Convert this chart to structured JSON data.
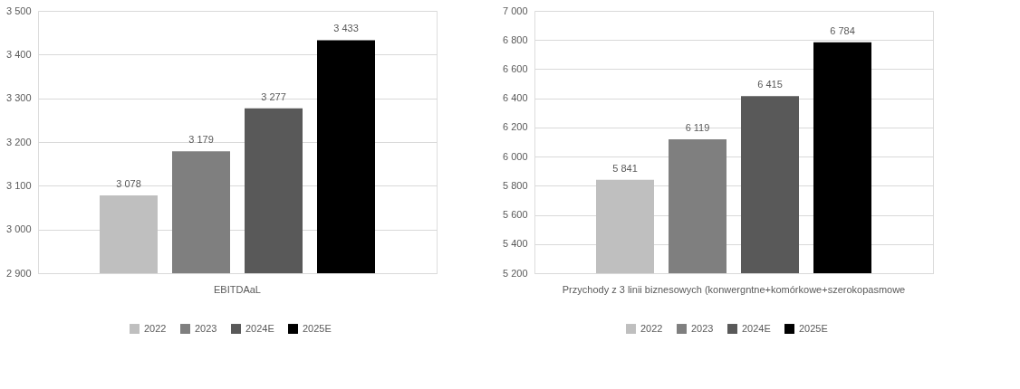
{
  "chart_data": [
    {
      "type": "bar",
      "categories": [
        "EBITDAaL"
      ],
      "series": [
        {
          "name": "2022",
          "color": "#bfbfbf",
          "values": [
            3078
          ],
          "value_labels": [
            "3 078"
          ]
        },
        {
          "name": "2023",
          "color": "#7f7f7f",
          "values": [
            3179
          ],
          "value_labels": [
            "3 179"
          ]
        },
        {
          "name": "2024E",
          "color": "#595959",
          "values": [
            3277
          ],
          "value_labels": [
            "3 277"
          ]
        },
        {
          "name": "2025E",
          "color": "#000000",
          "values": [
            3433
          ],
          "value_labels": [
            "3 433"
          ]
        }
      ],
      "ylim": [
        2900,
        3500
      ],
      "yticks": [
        {
          "value": 2900,
          "label": "2 900"
        },
        {
          "value": 3000,
          "label": "3 000"
        },
        {
          "value": 3100,
          "label": "3 100"
        },
        {
          "value": 3200,
          "label": "3 200"
        },
        {
          "value": 3300,
          "label": "3 300"
        },
        {
          "value": 3400,
          "label": "3 400"
        },
        {
          "value": 3500,
          "label": "3 500"
        }
      ],
      "grid": "y",
      "legend": "bottom"
    },
    {
      "type": "bar",
      "categories": [
        "Przychody z 3 linii biznesowych (konwergntne+komórkowe+szerokopasmowe"
      ],
      "series": [
        {
          "name": "2022",
          "color": "#bfbfbf",
          "values": [
            5841
          ],
          "value_labels": [
            "5 841"
          ]
        },
        {
          "name": "2023",
          "color": "#7f7f7f",
          "values": [
            6119
          ],
          "value_labels": [
            "6 119"
          ]
        },
        {
          "name": "2024E",
          "color": "#595959",
          "values": [
            6415
          ],
          "value_labels": [
            "6 415"
          ]
        },
        {
          "name": "2025E",
          "color": "#000000",
          "values": [
            6784
          ],
          "value_labels": [
            "6 784"
          ]
        }
      ],
      "ylim": [
        5200,
        7000
      ],
      "yticks": [
        {
          "value": 5200,
          "label": "5 200"
        },
        {
          "value": 5400,
          "label": "5 400"
        },
        {
          "value": 5600,
          "label": "5 600"
        },
        {
          "value": 5800,
          "label": "5 800"
        },
        {
          "value": 6000,
          "label": "6 000"
        },
        {
          "value": 6200,
          "label": "6 200"
        },
        {
          "value": 6400,
          "label": "6 400"
        },
        {
          "value": 6600,
          "label": "6 600"
        },
        {
          "value": 6800,
          "label": "6 800"
        },
        {
          "value": 7000,
          "label": "7 000"
        }
      ],
      "grid": "y",
      "legend": "bottom"
    }
  ]
}
